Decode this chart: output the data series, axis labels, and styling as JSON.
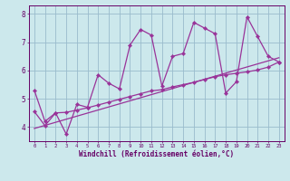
{
  "title": "",
  "xlabel": "Windchill (Refroidissement éolien,°C)",
  "bg_color": "#cce8ec",
  "line_color": "#993399",
  "grid_color": "#99bbcc",
  "axis_color": "#660066",
  "text_color": "#660066",
  "xlim": [
    -0.5,
    23.5
  ],
  "ylim": [
    3.5,
    8.3
  ],
  "xticks": [
    0,
    1,
    2,
    3,
    4,
    5,
    6,
    7,
    8,
    9,
    10,
    11,
    12,
    13,
    14,
    15,
    16,
    17,
    18,
    19,
    20,
    21,
    22,
    23
  ],
  "yticks": [
    4,
    5,
    6,
    7,
    8
  ],
  "line1_x": [
    0,
    1,
    2,
    3,
    4,
    5,
    6,
    7,
    8,
    9,
    10,
    11,
    12,
    13,
    14,
    15,
    16,
    17,
    18,
    19,
    20,
    21,
    22,
    23
  ],
  "line1_y": [
    5.3,
    4.2,
    4.5,
    3.75,
    4.8,
    4.7,
    5.85,
    5.55,
    5.35,
    6.9,
    7.45,
    7.25,
    5.45,
    6.5,
    6.6,
    7.7,
    7.5,
    7.3,
    5.2,
    5.6,
    7.9,
    7.2,
    6.5,
    6.3
  ],
  "line2_x": [
    0,
    1,
    2,
    3,
    4,
    5,
    6,
    7,
    8,
    9,
    10,
    11,
    12,
    13,
    14,
    15,
    16,
    17,
    18,
    19,
    20,
    21,
    22,
    23
  ],
  "line2_y": [
    4.55,
    4.05,
    4.5,
    4.52,
    4.6,
    4.68,
    4.78,
    4.88,
    4.98,
    5.08,
    5.18,
    5.28,
    5.32,
    5.42,
    5.5,
    5.58,
    5.68,
    5.78,
    5.85,
    5.9,
    5.95,
    6.02,
    6.12,
    6.3
  ],
  "line3_x": [
    0,
    23
  ],
  "line3_y": [
    3.95,
    6.45
  ]
}
